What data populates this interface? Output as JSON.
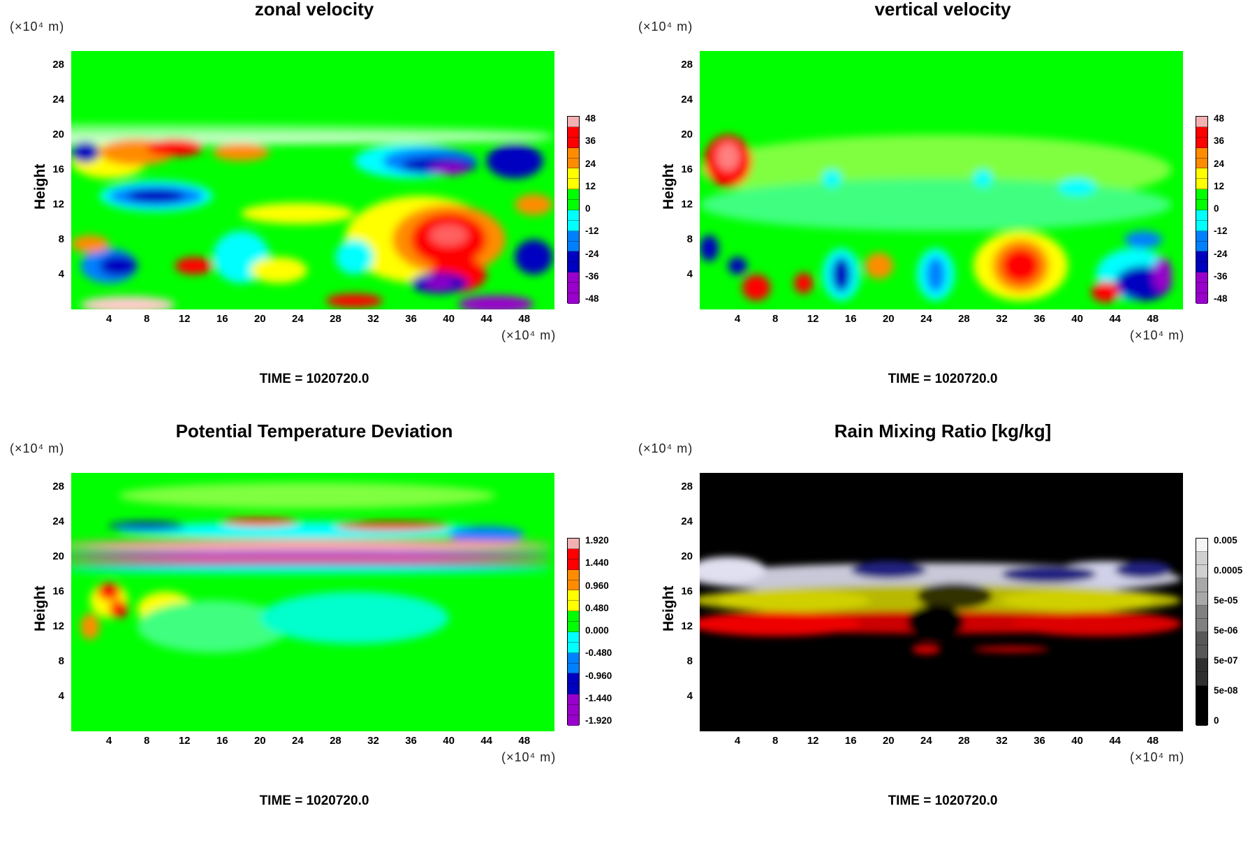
{
  "x_unit": "(×10⁴ m)",
  "y_unit": "(×10⁴ m)",
  "ylabel": "Height",
  "y_ticks": [
    "28",
    "24",
    "20",
    "16",
    "12",
    "8",
    "4"
  ],
  "x_ticks": [
    "4",
    "8",
    "12",
    "16",
    "20",
    "24",
    "28",
    "32",
    "36",
    "40",
    "44",
    "48"
  ],
  "time_label": "TIME = 1020720.0",
  "chart_data": [
    {
      "type": "heatmap",
      "title": "zonal velocity",
      "ylabel": "Height",
      "colorbar_labels": [
        "48",
        "36",
        "24",
        "12",
        "0",
        "-12",
        "-24",
        "-36",
        "-48"
      ],
      "colorbar_range": [
        -48,
        48
      ],
      "colormap": [
        "#f3b2b2",
        "#ff0000",
        "#ff8c00",
        "#ffff00",
        "#00ff00",
        "#00ffff",
        "#0080ff",
        "#0000c0",
        "#9900cc"
      ],
      "background": "#00ff00"
    },
    {
      "type": "heatmap",
      "title": "vertical velocity",
      "ylabel": "Height",
      "colorbar_labels": [
        "48",
        "36",
        "24",
        "12",
        "0",
        "-12",
        "-24",
        "-36",
        "-48"
      ],
      "colorbar_range": [
        -48,
        48
      ],
      "colormap": [
        "#f3b2b2",
        "#ff0000",
        "#ff8c00",
        "#ffff00",
        "#00ff00",
        "#00ffff",
        "#0080ff",
        "#0000c0",
        "#9900cc"
      ],
      "background": "#00ff00"
    },
    {
      "type": "heatmap",
      "title": "Potential Temperature Deviation",
      "ylabel": "Height",
      "colorbar_labels": [
        "1.920",
        "1.440",
        "0.960",
        "0.480",
        "0.000",
        "-0.480",
        "-0.960",
        "-1.440",
        "-1.920"
      ],
      "colorbar_range": [
        -1.92,
        1.92
      ],
      "colormap": [
        "#f3b2b2",
        "#ff0000",
        "#ff8c00",
        "#ffff00",
        "#00ff00",
        "#00ffff",
        "#0080ff",
        "#0000c0",
        "#9900cc"
      ],
      "background": "#00ff00"
    },
    {
      "type": "heatmap",
      "title": "Rain Mixing Ratio [kg/kg]",
      "ylabel": "Height",
      "colorbar_labels": [
        "0.005",
        "0.0005",
        "5e-05",
        "5e-06",
        "5e-07",
        "5e-08",
        "0"
      ],
      "colormap": [
        "#f5f5f5",
        "#d0d0d0",
        "#a8a8a8",
        "#808080",
        "#585858",
        "#303030",
        "#000000"
      ],
      "background": "#000000"
    }
  ]
}
